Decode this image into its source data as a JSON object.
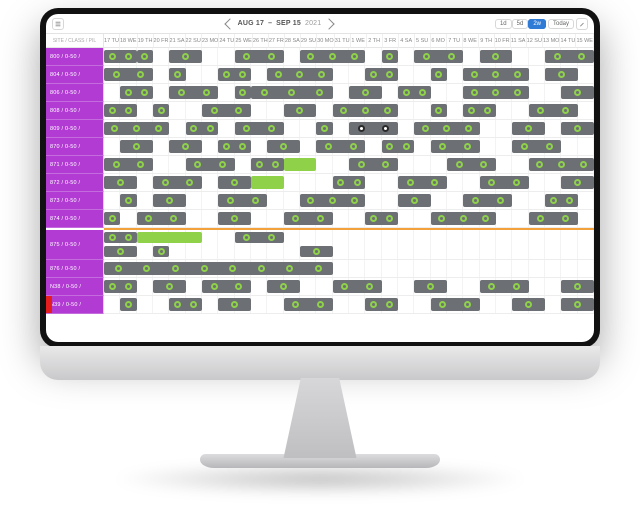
{
  "toolbar": {
    "range_prefix": "AUG 17",
    "range_sep": "–",
    "range_suffix": "SEP 15",
    "year": "2021",
    "today_label": "Today",
    "view_labels": [
      "1d",
      "5d",
      "2w"
    ],
    "active_view_index": 2
  },
  "corner_label": "SITE / CLASS / PIL",
  "colors": {
    "bar_gray": "#6c7074",
    "bar_green": "#8fd24a",
    "label_bg": "#b13bd3",
    "accent_red": "#e41e1e",
    "orange": "#f2a13b"
  },
  "grid": {
    "columns": 30,
    "orange_divider_after_row": 10
  },
  "day_headers": [
    "17 TU",
    "18 WE",
    "19 TH",
    "20 FR",
    "21 SA",
    "22 SU",
    "23 MO",
    "24 TU",
    "25 WE",
    "26 TH",
    "27 FR",
    "28 SA",
    "29 SU",
    "30 MO",
    "31 TU",
    "1 WE",
    "2 TH",
    "3 FR",
    "4 SA",
    "5 SU",
    "6 MO",
    "7 TU",
    "8 WE",
    "9 TH",
    "10 FR",
    "11 SA",
    "12 SU",
    "13 MO",
    "14 TU",
    "15 WE"
  ],
  "rows": [
    {
      "label": "800 / 0-50 /",
      "tall": false,
      "bars": [
        {
          "start": 0,
          "span": 2,
          "color": "gray",
          "dots": 2
        },
        {
          "start": 2,
          "span": 1,
          "color": "gray",
          "dots": 1
        },
        {
          "start": 4,
          "span": 2,
          "color": "gray",
          "dots": 1
        },
        {
          "start": 8,
          "span": 3,
          "color": "gray",
          "dots": 2
        },
        {
          "start": 12,
          "span": 4,
          "color": "gray",
          "dots": 3
        },
        {
          "start": 17,
          "span": 1,
          "color": "gray",
          "dots": 1
        },
        {
          "start": 19,
          "span": 3,
          "color": "gray",
          "dots": 2
        },
        {
          "start": 23,
          "span": 2,
          "color": "gray",
          "dots": 1
        },
        {
          "start": 27,
          "span": 3,
          "color": "gray",
          "dots": 2
        }
      ]
    },
    {
      "label": "804 / 0-50 /",
      "tall": false,
      "bars": [
        {
          "start": 0,
          "span": 3,
          "color": "gray",
          "dots": 2
        },
        {
          "start": 4,
          "span": 1,
          "color": "gray",
          "dots": 1
        },
        {
          "start": 7,
          "span": 2,
          "color": "gray",
          "dots": 2
        },
        {
          "start": 10,
          "span": 4,
          "color": "gray",
          "dots": 3
        },
        {
          "start": 16,
          "span": 2,
          "color": "gray",
          "dots": 2
        },
        {
          "start": 20,
          "span": 1,
          "color": "gray",
          "dots": 1
        },
        {
          "start": 22,
          "span": 4,
          "color": "gray",
          "dots": 3
        },
        {
          "start": 27,
          "span": 2,
          "color": "gray",
          "dots": 1
        }
      ]
    },
    {
      "label": "806 / 0-50 /",
      "tall": false,
      "bars": [
        {
          "start": 1,
          "span": 2,
          "color": "gray",
          "dots": 2
        },
        {
          "start": 4,
          "span": 3,
          "color": "gray",
          "dots": 2
        },
        {
          "start": 8,
          "span": 1,
          "color": "gray",
          "dots": 1
        },
        {
          "start": 9,
          "span": 5,
          "color": "gray",
          "dots": 3
        },
        {
          "start": 15,
          "span": 2,
          "color": "gray",
          "dots": 1
        },
        {
          "start": 18,
          "span": 2,
          "color": "gray",
          "dots": 2
        },
        {
          "start": 22,
          "span": 4,
          "color": "gray",
          "dots": 3
        },
        {
          "start": 28,
          "span": 2,
          "color": "gray",
          "dots": 1
        }
      ]
    },
    {
      "label": "808 / 0-50 /",
      "tall": false,
      "bars": [
        {
          "start": 0,
          "span": 2,
          "color": "gray",
          "dots": 2
        },
        {
          "start": 3,
          "span": 1,
          "color": "gray",
          "dots": 1
        },
        {
          "start": 6,
          "span": 3,
          "color": "gray",
          "dots": 2
        },
        {
          "start": 11,
          "span": 2,
          "color": "gray",
          "dots": 1
        },
        {
          "start": 14,
          "span": 4,
          "color": "gray",
          "dots": 3
        },
        {
          "start": 20,
          "span": 1,
          "color": "gray",
          "dots": 1
        },
        {
          "start": 22,
          "span": 2,
          "color": "gray",
          "dots": 2
        },
        {
          "start": 26,
          "span": 3,
          "color": "gray",
          "dots": 2
        }
      ]
    },
    {
      "label": "809 / 0-50 /",
      "tall": false,
      "bars": [
        {
          "start": 0,
          "span": 4,
          "color": "gray",
          "dots": 3
        },
        {
          "start": 5,
          "span": 2,
          "color": "gray",
          "dots": 2
        },
        {
          "start": 8,
          "span": 3,
          "color": "gray",
          "dots": 2
        },
        {
          "start": 13,
          "span": 1,
          "color": "gray",
          "dots": 1
        },
        {
          "start": 15,
          "span": 3,
          "color": "gray",
          "dots": 2,
          "dark": true
        },
        {
          "start": 19,
          "span": 4,
          "color": "gray",
          "dots": 3
        },
        {
          "start": 25,
          "span": 2,
          "color": "gray",
          "dots": 1
        },
        {
          "start": 28,
          "span": 2,
          "color": "gray",
          "dots": 1
        }
      ]
    },
    {
      "label": "870 / 0-50 /",
      "tall": false,
      "bars": [
        {
          "start": 1,
          "span": 2,
          "color": "gray",
          "dots": 1
        },
        {
          "start": 4,
          "span": 2,
          "color": "gray",
          "dots": 1
        },
        {
          "start": 7,
          "span": 2,
          "color": "gray",
          "dots": 2
        },
        {
          "start": 10,
          "span": 2,
          "color": "gray",
          "dots": 1
        },
        {
          "start": 13,
          "span": 3,
          "color": "gray",
          "dots": 2
        },
        {
          "start": 17,
          "span": 2,
          "color": "gray",
          "dots": 2
        },
        {
          "start": 20,
          "span": 3,
          "color": "gray",
          "dots": 2
        },
        {
          "start": 25,
          "span": 3,
          "color": "gray",
          "dots": 2
        }
      ]
    },
    {
      "label": "871 / 0-50 /",
      "tall": false,
      "bars": [
        {
          "start": 0,
          "span": 3,
          "color": "gray",
          "dots": 2
        },
        {
          "start": 5,
          "span": 3,
          "color": "gray",
          "dots": 2
        },
        {
          "start": 9,
          "span": 2,
          "color": "gray",
          "dots": 2
        },
        {
          "start": 11,
          "span": 2,
          "color": "green",
          "dots": 0
        },
        {
          "start": 15,
          "span": 3,
          "color": "gray",
          "dots": 2
        },
        {
          "start": 21,
          "span": 3,
          "color": "gray",
          "dots": 2
        },
        {
          "start": 26,
          "span": 4,
          "color": "gray",
          "dots": 3
        }
      ]
    },
    {
      "label": "872 / 0-50 /",
      "tall": false,
      "bars": [
        {
          "start": 0,
          "span": 2,
          "color": "gray",
          "dots": 1
        },
        {
          "start": 3,
          "span": 3,
          "color": "gray",
          "dots": 2
        },
        {
          "start": 7,
          "span": 2,
          "color": "gray",
          "dots": 1
        },
        {
          "start": 9,
          "span": 2,
          "color": "green",
          "dots": 0
        },
        {
          "start": 14,
          "span": 2,
          "color": "gray",
          "dots": 2
        },
        {
          "start": 18,
          "span": 3,
          "color": "gray",
          "dots": 2
        },
        {
          "start": 23,
          "span": 3,
          "color": "gray",
          "dots": 2
        },
        {
          "start": 28,
          "span": 2,
          "color": "gray",
          "dots": 1
        }
      ]
    },
    {
      "label": "873 / 0-50 /",
      "tall": false,
      "bars": [
        {
          "start": 1,
          "span": 1,
          "color": "gray",
          "dots": 1
        },
        {
          "start": 3,
          "span": 2,
          "color": "gray",
          "dots": 1
        },
        {
          "start": 7,
          "span": 3,
          "color": "gray",
          "dots": 2
        },
        {
          "start": 12,
          "span": 4,
          "color": "gray",
          "dots": 3
        },
        {
          "start": 18,
          "span": 2,
          "color": "gray",
          "dots": 1
        },
        {
          "start": 22,
          "span": 3,
          "color": "gray",
          "dots": 2
        },
        {
          "start": 27,
          "span": 2,
          "color": "gray",
          "dots": 2
        }
      ]
    },
    {
      "label": "874 / 0-50 /",
      "tall": false,
      "bars": [
        {
          "start": 0,
          "span": 1,
          "color": "gray",
          "dots": 1
        },
        {
          "start": 2,
          "span": 3,
          "color": "gray",
          "dots": 2
        },
        {
          "start": 7,
          "span": 2,
          "color": "gray",
          "dots": 1
        },
        {
          "start": 11,
          "span": 3,
          "color": "gray",
          "dots": 2
        },
        {
          "start": 16,
          "span": 2,
          "color": "gray",
          "dots": 2
        },
        {
          "start": 20,
          "span": 4,
          "color": "gray",
          "dots": 3
        },
        {
          "start": 26,
          "span": 3,
          "color": "gray",
          "dots": 2
        }
      ]
    },
    {
      "label": "875 / 0-50 /",
      "tall": true,
      "bars": [
        {
          "start": 0,
          "span": 2,
          "color": "gray",
          "dots": 2,
          "lane": 1
        },
        {
          "start": 2,
          "span": 4,
          "color": "green",
          "dots": 0,
          "lane": 1
        },
        {
          "start": 0,
          "span": 2,
          "color": "gray",
          "dots": 1,
          "lane": 2
        },
        {
          "start": 3,
          "span": 1,
          "color": "gray",
          "dots": 1,
          "lane": 2
        },
        {
          "start": 8,
          "span": 3,
          "color": "gray",
          "dots": 2,
          "lane": 1
        },
        {
          "start": 12,
          "span": 2,
          "color": "gray",
          "dots": 1,
          "lane": 2
        }
      ]
    },
    {
      "label": "876 / 0-50 /",
      "tall": false,
      "bars": [
        {
          "start": 0,
          "span": 14,
          "color": "gray",
          "dots": 8
        }
      ]
    },
    {
      "label": "N38 / 0-50 /",
      "tall": false,
      "bars": [
        {
          "start": 0,
          "span": 2,
          "color": "gray",
          "dots": 2
        },
        {
          "start": 3,
          "span": 2,
          "color": "gray",
          "dots": 1
        },
        {
          "start": 6,
          "span": 3,
          "color": "gray",
          "dots": 2
        },
        {
          "start": 10,
          "span": 2,
          "color": "gray",
          "dots": 1
        },
        {
          "start": 14,
          "span": 3,
          "color": "gray",
          "dots": 2
        },
        {
          "start": 19,
          "span": 2,
          "color": "gray",
          "dots": 1
        },
        {
          "start": 23,
          "span": 3,
          "color": "gray",
          "dots": 2
        },
        {
          "start": 28,
          "span": 2,
          "color": "gray",
          "dots": 1
        }
      ]
    },
    {
      "label": "N39 / 0-50 /",
      "accent": true,
      "tall": false,
      "bars": [
        {
          "start": 1,
          "span": 1,
          "color": "gray",
          "dots": 1
        },
        {
          "start": 4,
          "span": 2,
          "color": "gray",
          "dots": 2
        },
        {
          "start": 7,
          "span": 2,
          "color": "gray",
          "dots": 1
        },
        {
          "start": 11,
          "span": 3,
          "color": "gray",
          "dots": 2
        },
        {
          "start": 16,
          "span": 2,
          "color": "gray",
          "dots": 2
        },
        {
          "start": 20,
          "span": 3,
          "color": "gray",
          "dots": 2
        },
        {
          "start": 25,
          "span": 2,
          "color": "gray",
          "dots": 1
        },
        {
          "start": 28,
          "span": 2,
          "color": "gray",
          "dots": 1
        }
      ]
    }
  ]
}
